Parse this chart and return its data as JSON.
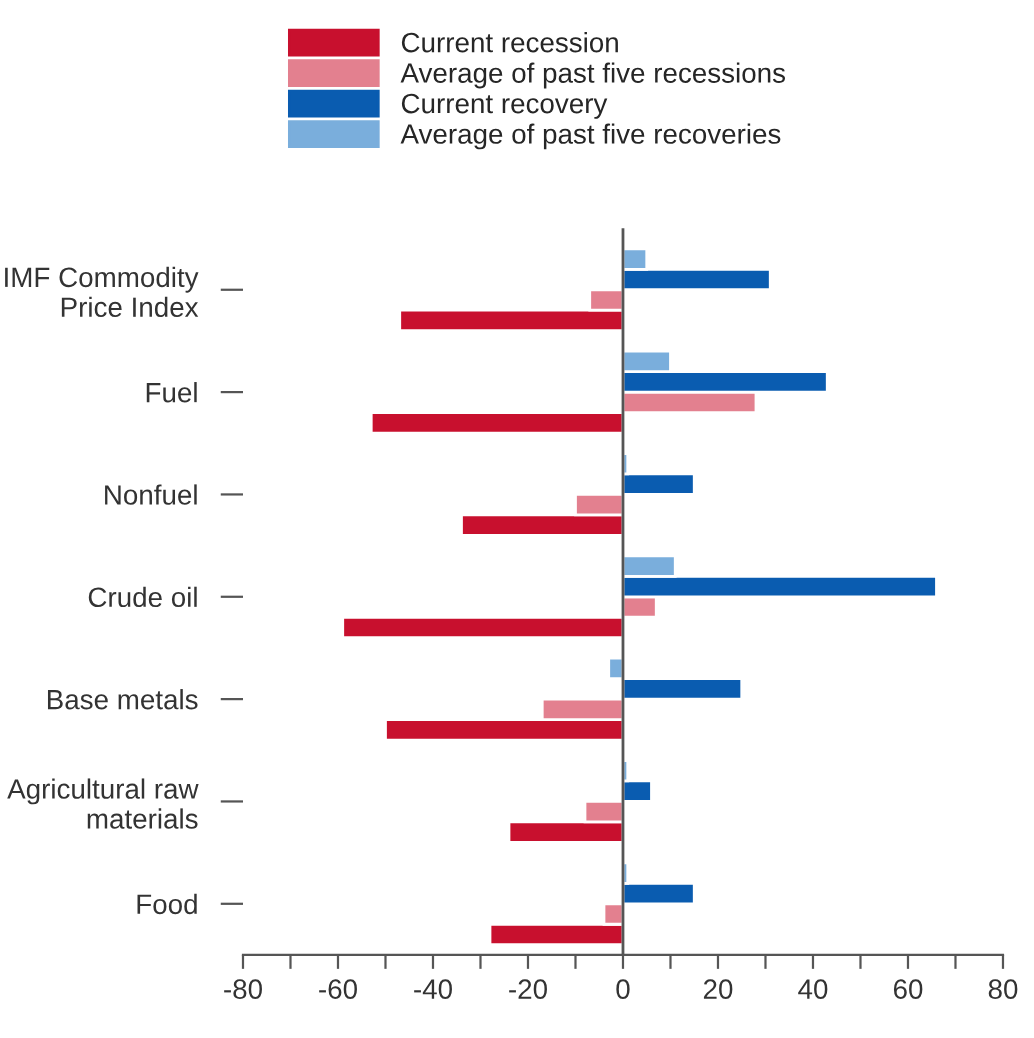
{
  "chart_data": {
    "type": "bar",
    "orientation": "horizontal",
    "categories": [
      "IMF Commodity\nPrice Index",
      "Fuel",
      "Nonfuel",
      "Crude oil",
      "Base metals",
      "Agricultural raw\nmaterials",
      "Food"
    ],
    "series": [
      {
        "name": "Current recession",
        "color": "#c8102e",
        "values": [
          -47,
          -53,
          -34,
          -59,
          -50,
          -24,
          -28
        ]
      },
      {
        "name": "Average of past five recessions",
        "color": "#e3808f",
        "values": [
          -7,
          28,
          -10,
          7,
          -17,
          -8,
          -4
        ]
      },
      {
        "name": "Current recovery",
        "color": "#0a5cb0",
        "values": [
          31,
          43,
          15,
          66,
          25,
          6,
          15
        ]
      },
      {
        "name": "Average of past five recoveries",
        "color": "#7aaedc",
        "values": [
          5,
          10,
          1,
          11,
          -3,
          1,
          1
        ]
      }
    ],
    "xlim": [
      -80,
      80
    ],
    "xticks": [
      -80,
      {
        "value": -70,
        "label": null
      },
      -60,
      {
        "value": -50,
        "label": null
      },
      -40,
      {
        "value": -30,
        "label": null
      },
      -20,
      {
        "value": -10,
        "label": null
      },
      0,
      {
        "value": 10,
        "label": null
      },
      20,
      {
        "value": 30,
        "label": null
      },
      40,
      {
        "value": 50,
        "label": null
      },
      60,
      {
        "value": 70,
        "label": null
      },
      80
    ],
    "ref_lines": [
      {
        "axis": "x",
        "value": 0,
        "color": "#555555"
      }
    ],
    "legend": "top",
    "grid": false
  }
}
